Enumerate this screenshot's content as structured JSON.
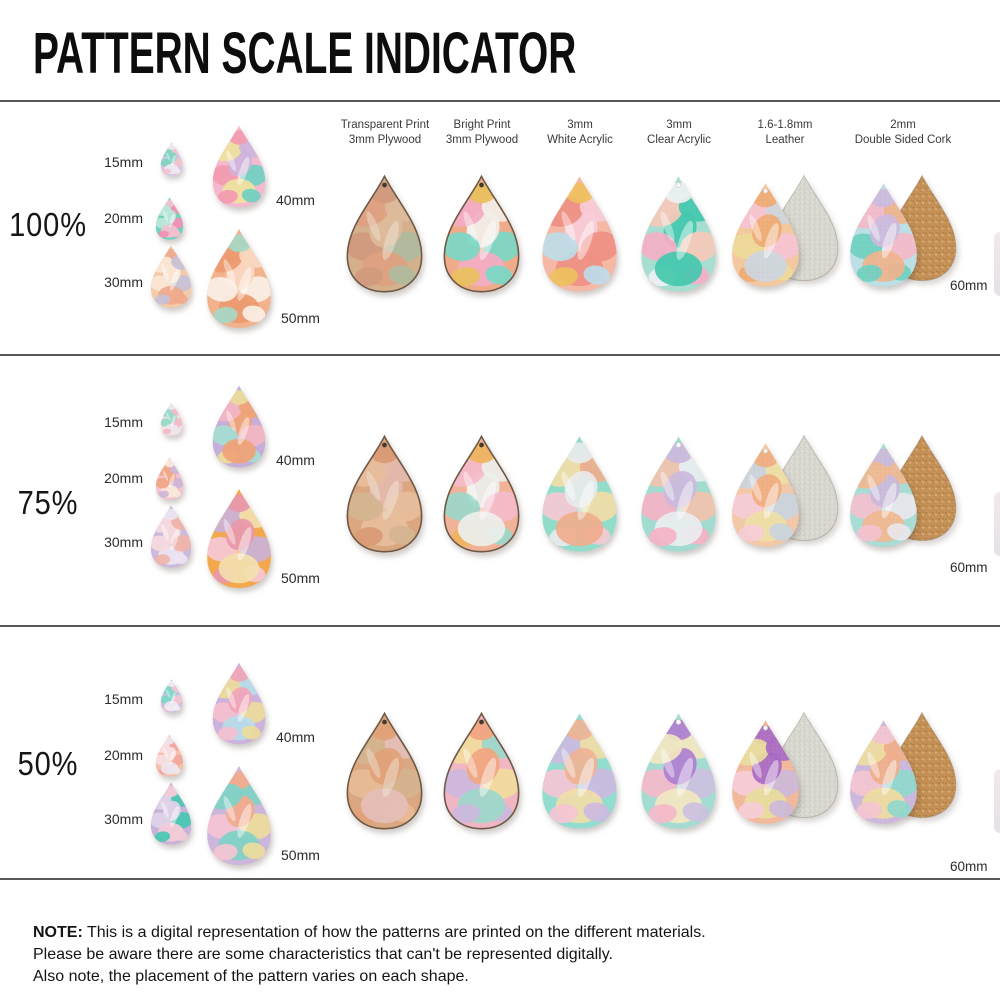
{
  "title": "PATTERN SCALE INDICATOR",
  "columns": [
    {
      "line1": "Transparent Print",
      "line2": "3mm Plywood"
    },
    {
      "line1": "Bright Print",
      "line2": "3mm Plywood"
    },
    {
      "line1": "3mm",
      "line2": "White Acrylic"
    },
    {
      "line1": "3mm",
      "line2": "Clear Acrylic"
    },
    {
      "line1": "1.6-1.8mm",
      "line2": "Leather"
    },
    {
      "line1": "2mm",
      "line2": "Double Sided Cork"
    }
  ],
  "size_labels": [
    "15mm",
    "20mm",
    "30mm",
    "40mm",
    "50mm"
  ],
  "sample_size_label": "60mm",
  "rows": [
    {
      "scale": "100%",
      "size_palettes": [
        [
          "#d9c6e4",
          "#7fd3c2",
          "#f2c2ce",
          "#efe9f1"
        ],
        [
          "#6fd1bf",
          "#bfe6da",
          "#f48fb4",
          "#f6bfcd"
        ],
        [
          "#f4cba8",
          "#f8e7d6",
          "#c6c2d8",
          "#efa98c"
        ],
        [
          "#f4b9ce",
          "#6fcfc2",
          "#efe2a0",
          "#cdb4dc",
          "#f29ab0"
        ],
        [
          "#f2b28c",
          "#faf0e6",
          "#ec9a6e",
          "#f8d8c0",
          "#a5d8c6"
        ]
      ],
      "sample_palettes": [
        [
          "#d9b697",
          "#aac4ac",
          "#e7a487",
          "#e5c4a8",
          "#d59a82"
        ],
        [
          "#f0ab8a",
          "#7ad8c6",
          "#f3abc4",
          "#f2efe9",
          "#e9c05e"
        ],
        [
          "#f4b8a4",
          "#bcdce8",
          "#ee8f84",
          "#f7ccd8",
          "#eec05e"
        ],
        [
          "#a8ded2",
          "#f4afc6",
          "#f6c9b8",
          "#44c8ae",
          "#eef0f2"
        ],
        [
          "#f3c89e",
          "#eeda9a",
          "#f6c3d2",
          "#ccd6e0",
          "#efaa74"
        ],
        [
          "#bcdfe6",
          "#6fd0c0",
          "#f4b8c8",
          "#f0b28c",
          "#cdb9dc"
        ]
      ]
    },
    {
      "scale": "75%",
      "size_palettes": [
        [
          "#f5dde4",
          "#92d8c8",
          "#f2b8c6",
          "#ece6ee"
        ],
        [
          "#f4c3ce",
          "#efa684",
          "#ccb6d8",
          "#f8e8dc"
        ],
        [
          "#ccb9dc",
          "#f6dae0",
          "#f0b4a8",
          "#ebe4f0"
        ],
        [
          "#c5aeda",
          "#a5dcd2",
          "#f4b6c2",
          "#f0a274",
          "#ecdc9a"
        ],
        [
          "#f4a84e",
          "#f6c9d6",
          "#c9b2d8",
          "#f2dfae",
          "#e898ae"
        ]
      ],
      "sample_palettes": [
        [
          "#e2ab86",
          "#d9bd9c",
          "#f2c8aa",
          "#eec2be",
          "#e09a78"
        ],
        [
          "#f1b398",
          "#9cd8ca",
          "#f4bccb",
          "#edefec",
          "#eeb45e"
        ],
        [
          "#92dcca",
          "#f6c8d4",
          "#f2dca6",
          "#f0ad8c",
          "#e9e9ec"
        ],
        [
          "#a2dcd0",
          "#f4b2c6",
          "#f1c2ac",
          "#e9edf0",
          "#ccb8dc"
        ],
        [
          "#f2c8a6",
          "#f6ccd8",
          "#c9d4de",
          "#eee0a6",
          "#f0ac80"
        ],
        [
          "#a8dcd4",
          "#f4c0ce",
          "#e8e6ec",
          "#f2b68e",
          "#ccb8da"
        ]
      ]
    },
    {
      "scale": "50%",
      "size_palettes": [
        [
          "#cfc0e0",
          "#7fd8c8",
          "#f3c6d2",
          "#f0ebf2"
        ],
        [
          "#f4c2a8",
          "#f8dee4",
          "#f1a89e",
          "#ebe6ee"
        ],
        [
          "#c9b2da",
          "#e0d4e8",
          "#47c8b2",
          "#f4ccd8"
        ],
        [
          "#ccb2dc",
          "#f4c0ce",
          "#ecdc9a",
          "#b8dce8",
          "#f1a6b6"
        ],
        [
          "#cdb6dc",
          "#f5c4d2",
          "#eedc9c",
          "#7fd2c4",
          "#f2ab8c"
        ]
      ],
      "sample_palettes": [
        [
          "#e2ab88",
          "#f2c4a4",
          "#d9bb9a",
          "#efc9ce",
          "#e8a47c"
        ],
        [
          "#f0b6c4",
          "#ccb8dc",
          "#f2dc9e",
          "#9cd8ca",
          "#f1a67e"
        ],
        [
          "#92dcd0",
          "#f5c6d4",
          "#ccbade",
          "#f2dca8",
          "#f0b294"
        ],
        [
          "#a5dcd2",
          "#f4b8ca",
          "#ccc0e0",
          "#f3e6c0",
          "#b07fd0"
        ],
        [
          "#f2b89c",
          "#f6ccd8",
          "#ccb8da",
          "#e8dc9e",
          "#a869c4"
        ],
        [
          "#ccb8dc",
          "#f4c4d0",
          "#8fd8cc",
          "#eedc9e",
          "#f0ae88"
        ]
      ]
    }
  ],
  "note": {
    "label": "NOTE:",
    "line1": "This is a digital representation of how the patterns are printed on the different materials.",
    "line2": "Please be aware there are some characteristics that can't be represented digitally.",
    "line3": "Also note, the placement of the pattern varies on each shape."
  },
  "colors": {
    "separator": "#575757",
    "title_text": "#0d0d0d",
    "body_text": "#141414",
    "suede_back": "#d8d8d0",
    "cork_back": "#c59257",
    "plywood_edge": "#6e5845"
  }
}
